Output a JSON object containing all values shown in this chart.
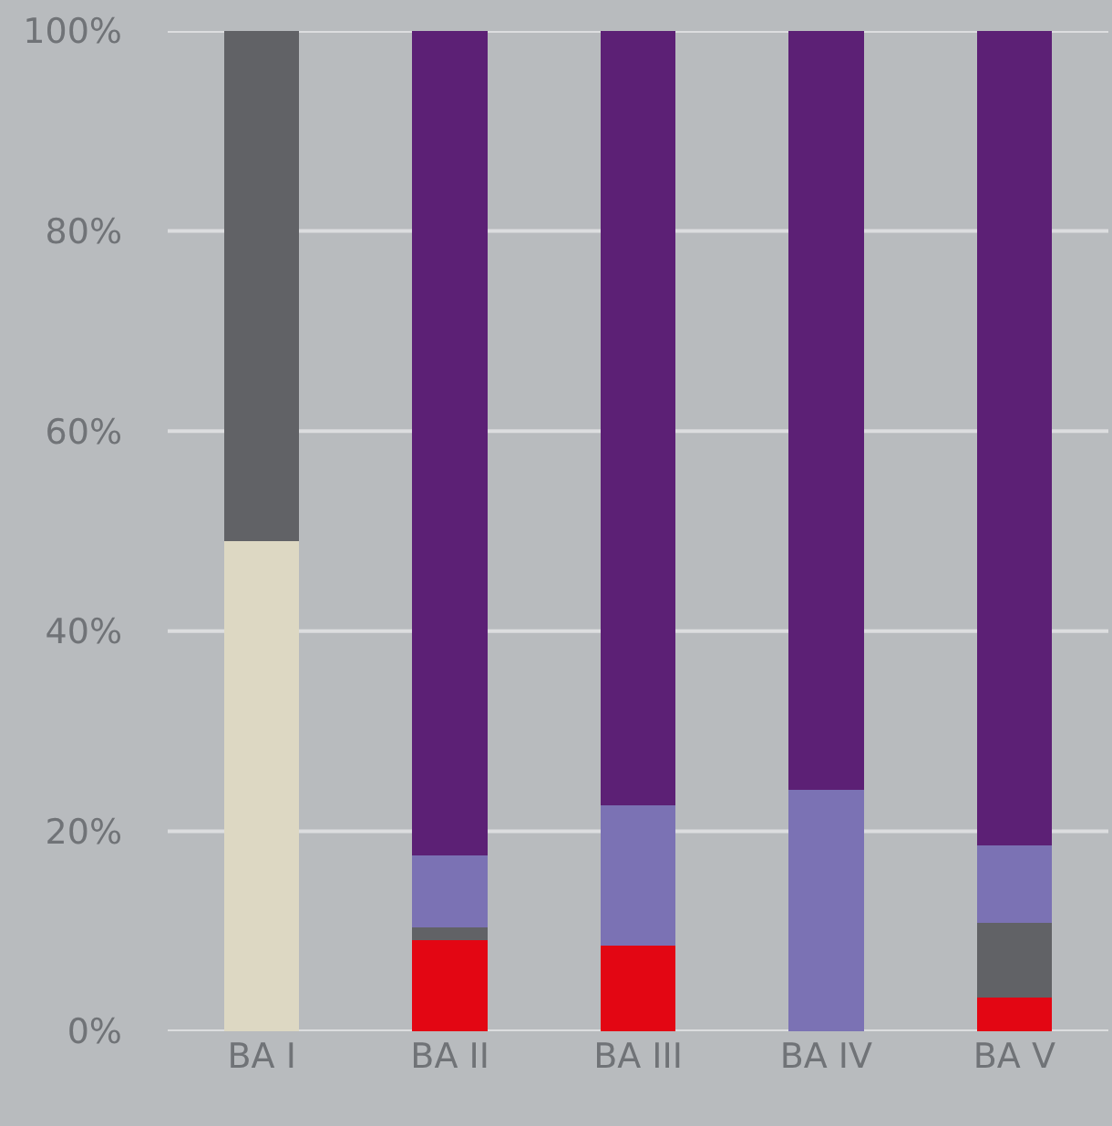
{
  "chart_data": {
    "type": "bar",
    "stacked": true,
    "categories": [
      "BA I",
      "BA II",
      "BA III",
      "BA IV",
      "BA V"
    ],
    "series": [
      {
        "color": "#ddd8c3",
        "values": [
          49,
          null,
          null,
          null,
          null
        ]
      },
      {
        "color": "#e30613",
        "values": [
          null,
          9.1,
          8.6,
          null,
          3.4
        ]
      },
      {
        "color": "#616266",
        "values": [
          51,
          1.3,
          null,
          null,
          7.4
        ]
      },
      {
        "color": "#7b72b4",
        "values": [
          null,
          7.2,
          14,
          24.1,
          7.8
        ]
      },
      {
        "color": "#5c2075",
        "values": [
          null,
          82.4,
          77.4,
          75.9,
          81.4
        ]
      }
    ],
    "ylim": [
      0,
      100
    ],
    "yticks": [
      {
        "value": 0,
        "label": "0%"
      },
      {
        "value": 20,
        "label": "20%"
      },
      {
        "value": 40,
        "label": "40%"
      },
      {
        "value": 60,
        "label": "60%"
      },
      {
        "value": 80,
        "label": "80%"
      },
      {
        "value": 100,
        "label": "100%"
      }
    ],
    "grid": "y"
  }
}
